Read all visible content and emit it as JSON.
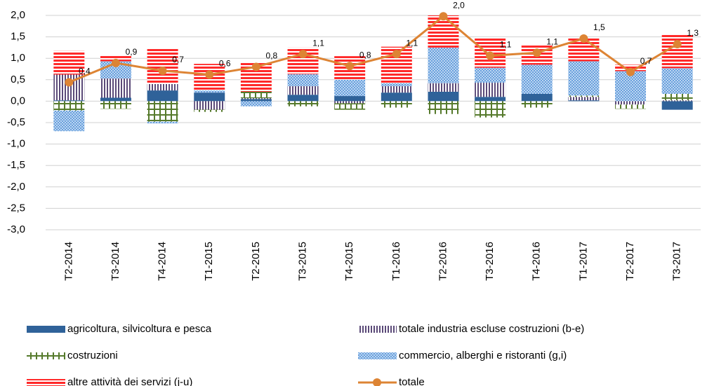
{
  "chart_data": {
    "type": "bar",
    "stacked": true,
    "categories": [
      "T2-2014",
      "T3-2014",
      "T4-2014",
      "T1-2015",
      "T2-2015",
      "T3-2015",
      "T4-2015",
      "T1-2016",
      "T2-2016",
      "T3-2016",
      "T4-2016",
      "T1-2017",
      "T2-2017",
      "T3-2017"
    ],
    "series": [
      {
        "name": "agricoltura, silvicoltura e pesca",
        "color": "#2f6299",
        "pattern": "solid",
        "values": [
          0.02,
          0.08,
          0.25,
          0.2,
          0.05,
          0.15,
          0.12,
          0.2,
          0.22,
          0.1,
          0.17,
          0.02,
          0,
          -0.2
        ]
      },
      {
        "name": "totale industria escluse costruzioni (b-e)",
        "color": "#5b4a78",
        "pattern": "vertical-stripes",
        "values": [
          0.6,
          0.45,
          0.15,
          -0.2,
          0.02,
          0.2,
          -0.05,
          0.15,
          0.2,
          0.33,
          0,
          0.08,
          -0.08,
          0.02
        ]
      },
      {
        "name": "costruzioni",
        "color": "#567a2c",
        "pattern": "cross",
        "values": [
          -0.22,
          -0.18,
          -0.48,
          -0.05,
          0.15,
          -0.12,
          -0.15,
          -0.15,
          -0.3,
          -0.38,
          -0.15,
          0.03,
          -0.1,
          0.15
        ]
      },
      {
        "name": "commercio, alberghi e ristoranti (g,i)",
        "color": "#4f8fd6",
        "pattern": "dots",
        "values": [
          -0.48,
          0.4,
          -0.04,
          0.05,
          -0.12,
          0.28,
          0.38,
          0.07,
          0.83,
          0.35,
          0.68,
          0.8,
          0.7,
          0.6
        ]
      },
      {
        "name": "altre attività dei servizi (j-u)",
        "color": "#ff2a2a",
        "pattern": "horizontal-stripes",
        "values": [
          0.55,
          0.15,
          0.82,
          0.62,
          0.7,
          0.62,
          0.55,
          0.85,
          0.75,
          0.7,
          0.45,
          0.55,
          0.15,
          0.8
        ]
      },
      {
        "name": "totale",
        "color": "#dd8434",
        "type": "line",
        "values": [
          0.44,
          0.89,
          0.71,
          0.62,
          0.8,
          1.1,
          0.82,
          1.1,
          1.98,
          1.06,
          1.13,
          1.46,
          0.68,
          1.33
        ],
        "value_labels": [
          "0,4",
          "0,9",
          "0,7",
          "0,6",
          "0,8",
          "1,1",
          "0,8",
          "1,1",
          "2,0",
          "1,1",
          "1,1",
          "1,5",
          "0,7",
          "1,3"
        ]
      }
    ],
    "ylim": [
      -3,
      2
    ],
    "yticks": [
      {
        "value": -3,
        "label": "-3,0"
      },
      {
        "value": -2.5,
        "label": "-2,5"
      },
      {
        "value": -2,
        "label": "-2,0"
      },
      {
        "value": -1.5,
        "label": "-1,5"
      },
      {
        "value": -1,
        "label": "-1,0"
      },
      {
        "value": -0.5,
        "label": "-0,5"
      },
      {
        "value": 0,
        "label": "0,0"
      },
      {
        "value": 0.5,
        "label": "0,5"
      },
      {
        "value": 1,
        "label": "1,0"
      },
      {
        "value": 1.5,
        "label": "1,5"
      },
      {
        "value": 2,
        "label": "2,0"
      }
    ],
    "grid": true
  }
}
